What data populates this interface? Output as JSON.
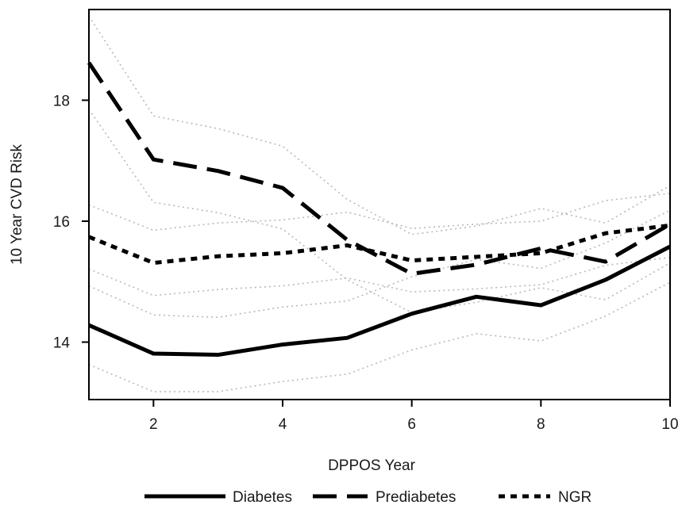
{
  "chart_data": {
    "type": "line",
    "xlabel": "DPPOS Year",
    "ylabel": "10 Year CVD Risk",
    "xlim": [
      1,
      10
    ],
    "ylim": [
      13.05,
      19.5
    ],
    "xticks": [
      2,
      4,
      6,
      8,
      10
    ],
    "yticks": [
      14,
      16,
      18
    ],
    "grid": false,
    "legend_position": "bottom",
    "x": [
      1,
      2,
      3,
      4,
      5,
      6,
      7,
      8,
      9,
      10
    ],
    "series": [
      {
        "name": "Diabetes",
        "style": "solid",
        "values": [
          14.28,
          13.81,
          13.79,
          13.96,
          14.07,
          14.47,
          14.75,
          14.61,
          15.03,
          15.58
        ],
        "ci_lower": [
          13.63,
          13.18,
          13.18,
          13.35,
          13.47,
          13.87,
          14.14,
          14.02,
          14.43,
          14.99
        ],
        "ci_upper": [
          14.93,
          14.45,
          14.41,
          14.58,
          14.68,
          15.08,
          15.37,
          15.22,
          15.64,
          16.18
        ]
      },
      {
        "name": "Prediabetes",
        "style": "dashed",
        "values": [
          18.62,
          17.02,
          16.83,
          16.55,
          15.69,
          15.13,
          15.28,
          15.55,
          15.33,
          15.95
        ],
        "ci_lower": [
          17.85,
          16.31,
          16.14,
          15.87,
          15.03,
          14.49,
          14.66,
          14.9,
          14.7,
          15.31
        ],
        "ci_upper": [
          19.39,
          17.74,
          17.53,
          17.24,
          16.36,
          15.78,
          15.92,
          16.21,
          15.97,
          16.59
        ]
      },
      {
        "name": "NGR",
        "style": "dotted",
        "values": [
          15.74,
          15.31,
          15.42,
          15.47,
          15.6,
          15.35,
          15.41,
          15.47,
          15.8,
          15.93
        ],
        "ci_lower": [
          15.21,
          14.77,
          14.87,
          14.93,
          15.06,
          14.83,
          14.88,
          14.95,
          15.27,
          15.4
        ],
        "ci_upper": [
          16.27,
          15.85,
          15.97,
          16.02,
          16.15,
          15.88,
          15.95,
          16.0,
          16.34,
          16.46
        ]
      }
    ],
    "colors": {
      "line": "#000000",
      "ci": "#b9b9b9"
    }
  }
}
